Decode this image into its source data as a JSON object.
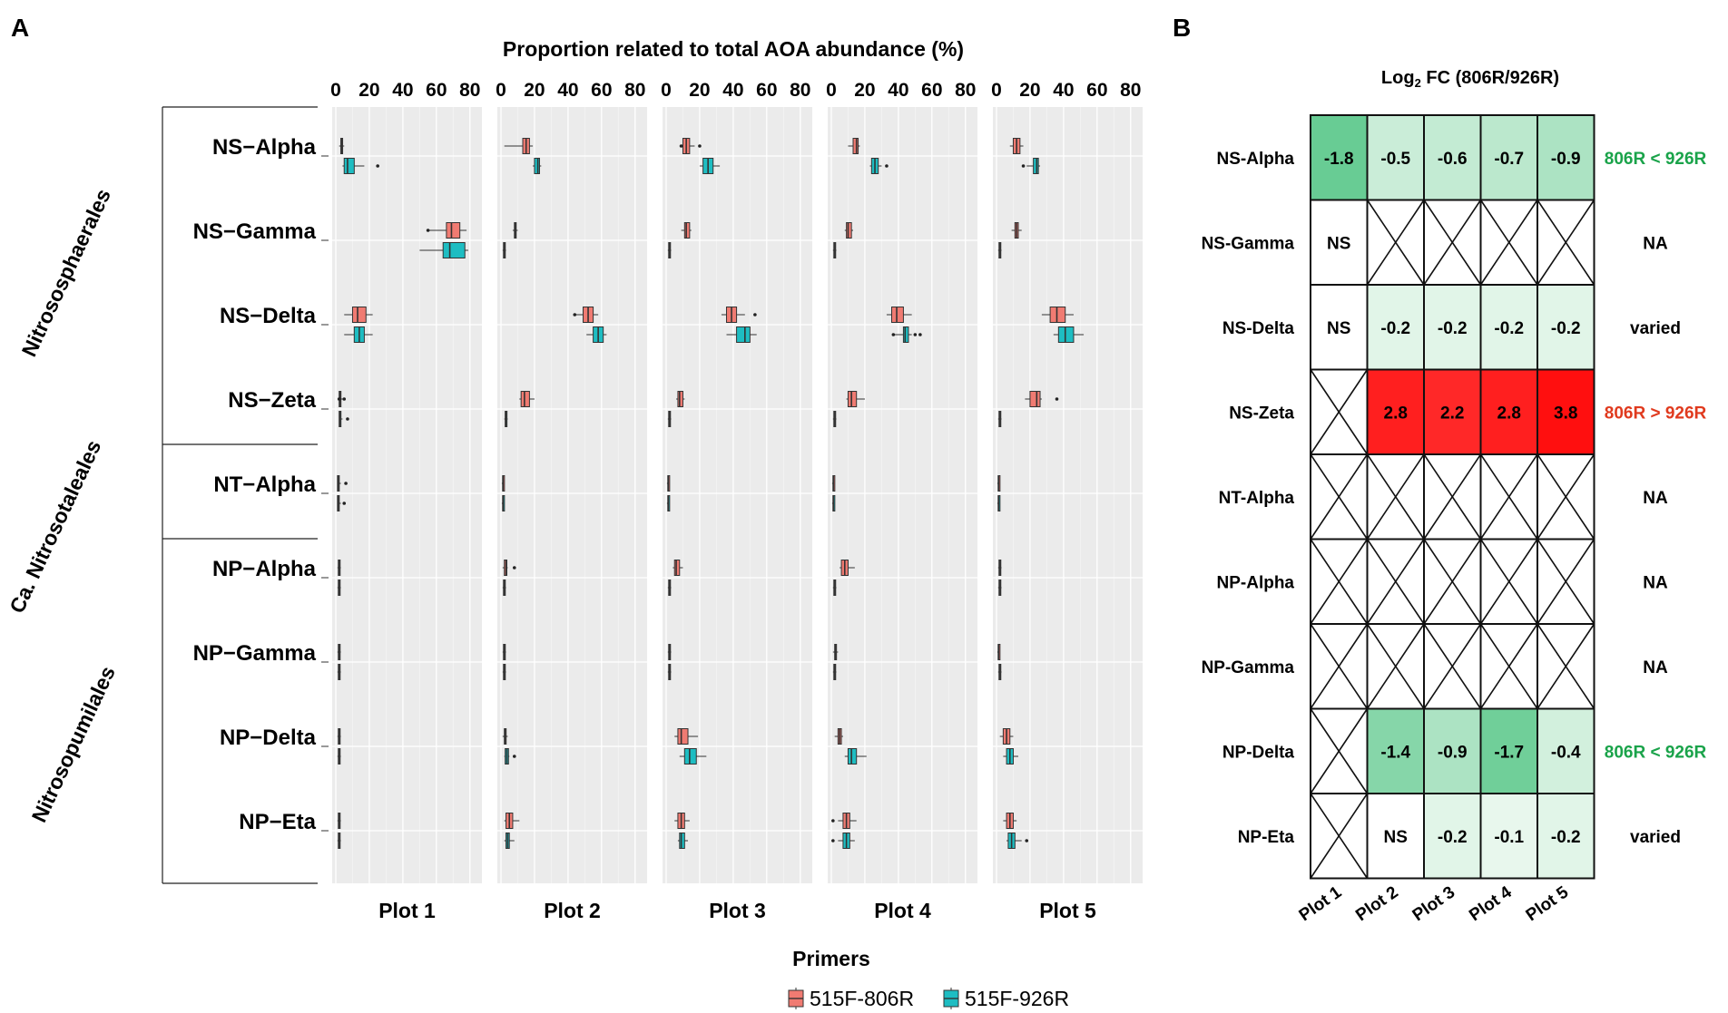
{
  "chart_data": [
    {
      "panel": "A",
      "type": "boxplot",
      "title": "Proportion related to total AOA abundance (%)",
      "xlim": [
        0,
        85
      ],
      "xticks": [
        0,
        20,
        40,
        60,
        80
      ],
      "facets": [
        "Plot 1",
        "Plot 2",
        "Plot 3",
        "Plot 4",
        "Plot 5"
      ],
      "groups": [
        {
          "order": "Nitrososphaerales",
          "taxa": [
            "NS−Alpha",
            "NS−Gamma",
            "NS−Delta",
            "NS−Zeta"
          ]
        },
        {
          "order": "Ca. Nitrosotaleales",
          "taxa": [
            "NT−Alpha"
          ]
        },
        {
          "order": "Nitrosopumilales",
          "taxa": [
            "NP−Alpha",
            "NP−Gamma",
            "NP−Delta",
            "NP−Eta"
          ]
        }
      ],
      "legend": {
        "title": "Primers",
        "entries": [
          {
            "label": "515F-806R",
            "color": "#f07b72"
          },
          {
            "label": "515F-926R",
            "color": "#1ebdc2"
          }
        ]
      },
      "series_note": "each box: [whisker_min, q1, median, q3, whisker_max, outliers...] in %",
      "boxes": {
        "515F-806R": [
          [
            [
              2,
              3,
              3.5,
              4,
              5,
              []
            ],
            [
              2,
              13,
              15,
              17,
              19,
              []
            ],
            [
              8,
              10,
              12,
              14,
              17,
              [
                9,
                20
              ]
            ],
            [
              10,
              13,
              15,
              16,
              17,
              []
            ],
            [
              8,
              10,
              12,
              14,
              16,
              []
            ]
          ],
          [
            [
              55,
              66,
              69,
              74,
              78,
              [
                55
              ]
            ],
            [
              7,
              8,
              8.5,
              9,
              10,
              []
            ],
            [
              9,
              11,
              12,
              14,
              15,
              []
            ],
            [
              8,
              9,
              10,
              12,
              13,
              []
            ],
            [
              9,
              11,
              12,
              13,
              15,
              []
            ]
          ],
          [
            [
              5,
              10,
              13,
              18,
              22,
              []
            ],
            [
              44,
              49,
              52,
              55,
              58,
              [
                44
              ]
            ],
            [
              33,
              36,
              39,
              42,
              47,
              [
                53
              ]
            ],
            [
              33,
              36,
              39,
              43,
              48,
              []
            ],
            [
              27,
              32,
              36,
              41,
              46,
              []
            ]
          ],
          [
            [
              2,
              2,
              2.5,
              3,
              4,
              [
                2,
                5
              ]
            ],
            [
              11,
              12,
              14,
              17,
              20,
              []
            ],
            [
              6,
              7,
              8,
              10,
              11,
              []
            ],
            [
              9,
              10,
              12,
              15,
              20,
              []
            ],
            [
              17,
              20,
              24,
              26,
              27,
              [
                36
              ]
            ]
          ],
          [
            [
              1,
              1,
              1.5,
              2,
              3,
              [
                6
              ]
            ],
            [
              0.5,
              1,
              1.2,
              1.5,
              2,
              []
            ],
            [
              0.5,
              1,
              1.2,
              1.5,
              2,
              []
            ],
            [
              0.5,
              1,
              1.2,
              1.5,
              2,
              []
            ],
            [
              0.5,
              1,
              1.2,
              1.5,
              2,
              []
            ]
          ],
          [
            [
              1,
              1.5,
              2,
              2.5,
              3,
              []
            ],
            [
              1,
              2,
              3,
              3.5,
              4,
              [
                8
              ]
            ],
            [
              4,
              5,
              6,
              8,
              10,
              []
            ],
            [
              5,
              6,
              8,
              10,
              14,
              []
            ],
            [
              1,
              1.5,
              2,
              2.5,
              3,
              []
            ]
          ],
          [
            [
              1,
              1.5,
              2,
              2.5,
              3,
              []
            ],
            [
              1,
              1.5,
              2,
              2.5,
              3,
              []
            ],
            [
              1,
              1.5,
              2,
              2.5,
              3,
              []
            ],
            [
              1,
              2,
              2.5,
              3,
              4,
              []
            ],
            [
              0.5,
              1,
              1.2,
              1.5,
              2,
              []
            ]
          ],
          [
            [
              1,
              1.5,
              2,
              2.5,
              3,
              []
            ],
            [
              1,
              2,
              2.5,
              3,
              4,
              []
            ],
            [
              5,
              7,
              9,
              13,
              19,
              []
            ],
            [
              2,
              4,
              5,
              6,
              7,
              []
            ],
            [
              2,
              4,
              6,
              8,
              10,
              []
            ]
          ],
          [
            [
              1,
              1.5,
              2,
              2.5,
              3,
              []
            ],
            [
              2,
              3,
              5,
              7,
              11,
              []
            ],
            [
              5,
              7,
              9,
              11,
              14,
              []
            ],
            [
              4,
              7,
              9,
              11,
              15,
              [
                1
              ]
            ],
            [
              4,
              6,
              8,
              10,
              12,
              []
            ]
          ]
        ],
        "515F-926R": [
          [
            [
              4,
              5,
              7,
              11,
              17,
              [
                25
              ]
            ],
            [
              19,
              20,
              22,
              23,
              24,
              []
            ],
            [
              20,
              22,
              25,
              28,
              32,
              []
            ],
            [
              23,
              24,
              26,
              28,
              30,
              [
                33
              ]
            ],
            [
              18,
              22,
              24,
              25,
              26,
              [
                16
              ]
            ]
          ],
          [
            [
              50,
              64,
              68,
              77,
              79,
              []
            ],
            [
              1,
              1.5,
              2,
              2.5,
              3,
              []
            ],
            [
              1,
              1.5,
              2,
              2.5,
              3,
              []
            ],
            [
              1,
              1.5,
              2,
              2.5,
              3,
              []
            ],
            [
              1,
              1.5,
              2,
              2.5,
              3,
              []
            ]
          ],
          [
            [
              5,
              11,
              14,
              17,
              22,
              []
            ],
            [
              51,
              55,
              58,
              61,
              63,
              []
            ],
            [
              36,
              42,
              47,
              50,
              54,
              []
            ],
            [
              37,
              43,
              44,
              46,
              48,
              [
                37,
                50,
                53
              ]
            ],
            [
              34,
              37,
              41,
              46,
              52,
              []
            ]
          ],
          [
            [
              2,
              2,
              2.5,
              3,
              4,
              [
                7
              ]
            ],
            [
              2,
              2.5,
              3,
              3.5,
              4,
              []
            ],
            [
              1,
              1.5,
              2,
              2.5,
              3,
              []
            ],
            [
              1,
              1.5,
              2,
              2.5,
              3,
              []
            ],
            [
              1,
              1.5,
              2,
              2.5,
              3,
              []
            ]
          ],
          [
            [
              1,
              1,
              1.5,
              2,
              3,
              [
                5
              ]
            ],
            [
              0.5,
              1,
              1.2,
              1.5,
              2,
              []
            ],
            [
              0.5,
              1,
              1.2,
              1.5,
              2,
              []
            ],
            [
              0.5,
              1,
              1.2,
              1.5,
              2,
              []
            ],
            [
              0.5,
              1,
              1.2,
              1.5,
              2,
              []
            ]
          ],
          [
            [
              1,
              1.5,
              2,
              2.5,
              3,
              []
            ],
            [
              1,
              1.5,
              2,
              2.5,
              3,
              []
            ],
            [
              1,
              1.5,
              2,
              2.5,
              3,
              []
            ],
            [
              1,
              1.5,
              2,
              2.5,
              3,
              []
            ],
            [
              1,
              1.5,
              2,
              2.5,
              3,
              []
            ]
          ],
          [
            [
              1,
              1.5,
              2,
              2.5,
              3,
              []
            ],
            [
              1,
              1.5,
              2,
              2.5,
              3,
              []
            ],
            [
              1,
              1.5,
              2,
              2.5,
              3,
              []
            ],
            [
              1,
              1.5,
              2,
              2.5,
              3,
              []
            ],
            [
              1,
              1.5,
              2,
              2.5,
              3,
              []
            ]
          ],
          [
            [
              1,
              1.5,
              2,
              2.5,
              3,
              []
            ],
            [
              2,
              2.5,
              3.5,
              4.5,
              5,
              [
                8
              ]
            ],
            [
              8,
              11,
              14,
              18,
              24,
              []
            ],
            [
              8,
              10,
              12,
              15,
              21,
              []
            ],
            [
              4,
              6,
              8,
              10,
              13,
              []
            ]
          ],
          [
            [
              1,
              1.5,
              2,
              2.5,
              3,
              []
            ],
            [
              2,
              3,
              4,
              5,
              8,
              []
            ],
            [
              7,
              8,
              9,
              11,
              13,
              []
            ],
            [
              4,
              7,
              9,
              11,
              14,
              [
                1
              ]
            ],
            [
              6,
              7,
              9,
              11,
              15,
              [
                18
              ]
            ]
          ]
        ]
      }
    },
    {
      "panel": "B",
      "type": "heatmap",
      "title_pre": "Log",
      "title_sub": "2",
      "title_post": " FC (806R/926R)",
      "rows": [
        "NS-Alpha",
        "NS-Gamma",
        "NS-Delta",
        "NS-Zeta",
        "NT-Alpha",
        "NP-Alpha",
        "NP-Gamma",
        "NP-Delta",
        "NP-Eta"
      ],
      "columns": [
        "Plot 1",
        "Plot 2",
        "Plot 3",
        "Plot 4",
        "Plot 5"
      ],
      "cells": [
        [
          -1.8,
          -0.5,
          -0.6,
          -0.7,
          -0.9
        ],
        [
          "NS",
          null,
          null,
          null,
          null
        ],
        [
          "NS",
          -0.2,
          -0.2,
          -0.2,
          -0.2
        ],
        [
          null,
          2.8,
          2.2,
          2.8,
          3.8
        ],
        [
          null,
          null,
          null,
          null,
          null
        ],
        [
          null,
          null,
          null,
          null,
          null
        ],
        [
          null,
          null,
          null,
          null,
          null
        ],
        [
          null,
          -1.4,
          -0.9,
          -1.7,
          -0.4
        ],
        [
          null,
          "NS",
          -0.2,
          -0.1,
          -0.2
        ]
      ],
      "row_summary": [
        {
          "text": "806R < 926R",
          "color": "#1aa34a"
        },
        {
          "text": "NA",
          "color": "#000000"
        },
        {
          "text": "varied",
          "color": "#000000"
        },
        {
          "text": "806R > 926R",
          "color": "#e03a1e"
        },
        {
          "text": "NA",
          "color": "#000000"
        },
        {
          "text": "NA",
          "color": "#000000"
        },
        {
          "text": "NA",
          "color": "#000000"
        },
        {
          "text": "806R < 926R",
          "color": "#1aa34a"
        },
        {
          "text": "varied",
          "color": "#000000"
        }
      ]
    }
  ],
  "labels": {
    "panel_a": "A",
    "panel_b": "B"
  }
}
